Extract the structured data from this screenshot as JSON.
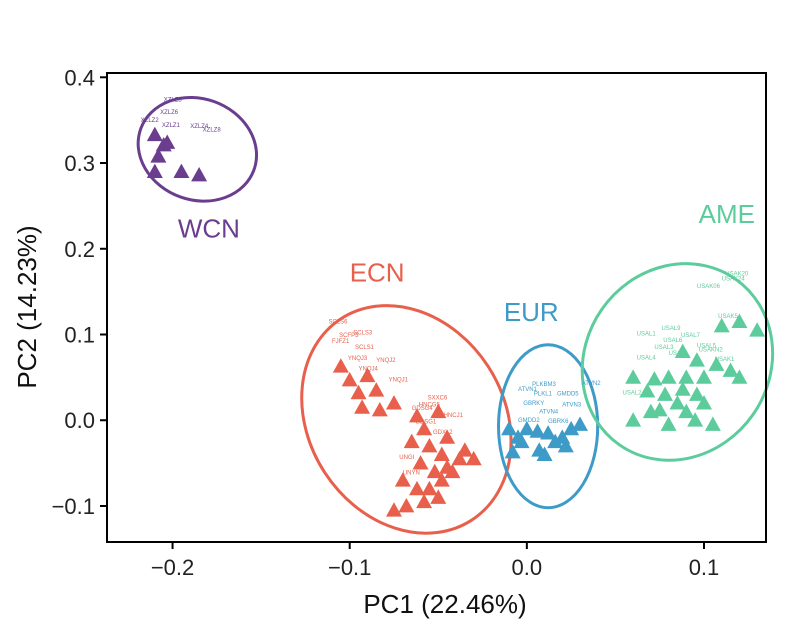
{
  "chart_data": {
    "type": "scatter",
    "xlabel": "PC1 (22.46%)",
    "ylabel": "PC2 (14.23%)",
    "xlim": [
      -0.237,
      0.135
    ],
    "ylim": [
      -0.142,
      0.405
    ],
    "x_ticks": [
      -0.2,
      -0.1,
      0.0,
      0.1
    ],
    "x_tick_labels": [
      "−0.2",
      "−0.1",
      "0.0",
      "0.1"
    ],
    "y_ticks": [
      -0.1,
      0.0,
      0.1,
      0.2,
      0.3,
      0.4
    ],
    "y_tick_labels": [
      "−0.1",
      "0.0",
      "0.1",
      "0.2",
      "0.3",
      "0.4"
    ],
    "grid": false,
    "legend": "none",
    "marker": "triangle",
    "groups": [
      {
        "name": "WCN",
        "color": "#6a3d8f",
        "label_at": [
          -0.197,
          0.213
        ],
        "ellipse": {
          "cx": -0.186,
          "cy": 0.316,
          "rx": 0.034,
          "ry": 0.059,
          "angle_deg": 20
        },
        "points": [
          [
            -0.21,
            0.333
          ],
          [
            -0.205,
            0.321
          ],
          [
            -0.208,
            0.308
          ],
          [
            -0.21,
            0.29
          ],
          [
            -0.195,
            0.29
          ],
          [
            -0.185,
            0.286
          ],
          [
            -0.203,
            0.324
          ]
        ],
        "point_labels": [
          {
            "text": "XZLZ3",
            "x": -0.205,
            "y": 0.372
          },
          {
            "text": "XZLZ6",
            "x": -0.207,
            "y": 0.357
          },
          {
            "text": "XZLZ2",
            "x": -0.218,
            "y": 0.348
          },
          {
            "text": "XZLZ1",
            "x": -0.206,
            "y": 0.342
          },
          {
            "text": "XZLZ4",
            "x": -0.19,
            "y": 0.341
          },
          {
            "text": "XZLZ8",
            "x": -0.183,
            "y": 0.337
          }
        ]
      },
      {
        "name": "ECN",
        "color": "#e8604c",
        "label_at": [
          -0.1,
          0.162
        ],
        "ellipse": {
          "cx": -0.068,
          "cy": 0.001,
          "rx": 0.055,
          "ry": 0.14,
          "angle_deg": -33
        },
        "points": [
          [
            -0.105,
            0.063
          ],
          [
            -0.1,
            0.047
          ],
          [
            -0.09,
            0.052
          ],
          [
            -0.095,
            0.032
          ],
          [
            -0.085,
            0.035
          ],
          [
            -0.093,
            0.015
          ],
          [
            -0.075,
            0.02
          ],
          [
            -0.083,
            0.012
          ],
          [
            -0.05,
            0.01
          ],
          [
            -0.062,
            0.005
          ],
          [
            -0.058,
            -0.01
          ],
          [
            -0.045,
            -0.02
          ],
          [
            -0.055,
            -0.03
          ],
          [
            -0.065,
            -0.025
          ],
          [
            -0.048,
            -0.04
          ],
          [
            -0.038,
            -0.045
          ],
          [
            -0.06,
            -0.05
          ],
          [
            -0.052,
            -0.06
          ],
          [
            -0.045,
            -0.055
          ],
          [
            -0.035,
            -0.035
          ],
          [
            -0.07,
            -0.07
          ],
          [
            -0.062,
            -0.08
          ],
          [
            -0.055,
            -0.08
          ],
          [
            -0.048,
            -0.07
          ],
          [
            -0.058,
            -0.095
          ],
          [
            -0.068,
            -0.1
          ],
          [
            -0.075,
            -0.105
          ],
          [
            -0.05,
            -0.09
          ],
          [
            -0.042,
            -0.06
          ],
          [
            -0.03,
            -0.045
          ]
        ],
        "point_labels": [
          {
            "text": "SCLS6",
            "x": -0.112,
            "y": 0.113
          },
          {
            "text": "SCLS3",
            "x": -0.098,
            "y": 0.1
          },
          {
            "text": "SCFP3",
            "x": -0.106,
            "y": 0.097
          },
          {
            "text": "FJFZ1",
            "x": -0.11,
            "y": 0.09
          },
          {
            "text": "SCLS1",
            "x": -0.097,
            "y": 0.083
          },
          {
            "text": "YNQJ3",
            "x": -0.101,
            "y": 0.07
          },
          {
            "text": "YNQJ2",
            "x": -0.085,
            "y": 0.068
          },
          {
            "text": "YNQJ4",
            "x": -0.095,
            "y": 0.058
          },
          {
            "text": "YNQJ1",
            "x": -0.078,
            "y": 0.045
          },
          {
            "text": "SXXC6",
            "x": -0.056,
            "y": 0.024
          },
          {
            "text": "HNCG5",
            "x": -0.061,
            "y": 0.016
          },
          {
            "text": "GDSG4",
            "x": -0.065,
            "y": 0.012
          },
          {
            "text": "HNCJ1",
            "x": -0.047,
            "y": 0.004
          },
          {
            "text": "GDSG1",
            "x": -0.063,
            "y": -0.004
          },
          {
            "text": "GDXL2",
            "x": -0.053,
            "y": -0.016
          },
          {
            "text": "UNGI",
            "x": -0.072,
            "y": -0.045
          },
          {
            "text": "UNYN",
            "x": -0.07,
            "y": -0.063
          }
        ]
      },
      {
        "name": "EUR",
        "color": "#3e9bc8",
        "label_at": [
          -0.013,
          0.116
        ],
        "ellipse": {
          "cx": 0.012,
          "cy": -0.007,
          "rx": 0.028,
          "ry": 0.095,
          "angle_deg": 0
        },
        "points": [
          [
            -0.01,
            -0.01
          ],
          [
            -0.005,
            -0.02
          ],
          [
            0.0,
            -0.01
          ],
          [
            0.006,
            -0.013
          ],
          [
            0.012,
            -0.015
          ],
          [
            0.02,
            -0.02
          ],
          [
            0.025,
            -0.01
          ],
          [
            0.03,
            -0.005
          ],
          [
            0.016,
            -0.025
          ],
          [
            0.007,
            -0.035
          ],
          [
            -0.003,
            -0.025
          ],
          [
            -0.008,
            -0.037
          ],
          [
            0.01,
            -0.04
          ],
          [
            0.022,
            -0.03
          ]
        ],
        "point_labels": [
          {
            "text": "PLKBM3",
            "x": 0.003,
            "y": 0.04
          },
          {
            "text": "ATVN2",
            "x": 0.031,
            "y": 0.041
          },
          {
            "text": "ATVN1",
            "x": -0.005,
            "y": 0.034
          },
          {
            "text": "PLKL1",
            "x": 0.004,
            "y": 0.029
          },
          {
            "text": "GMDD5",
            "x": 0.017,
            "y": 0.029
          },
          {
            "text": "GBRKY",
            "x": -0.002,
            "y": 0.018
          },
          {
            "text": "ATVN3",
            "x": 0.02,
            "y": 0.016
          },
          {
            "text": "ATVN4",
            "x": 0.007,
            "y": 0.008
          },
          {
            "text": "GMDD2",
            "x": -0.005,
            "y": -0.002
          },
          {
            "text": "GBRK6",
            "x": 0.012,
            "y": -0.003
          }
        ]
      },
      {
        "name": "AME",
        "color": "#5dcc9c",
        "label_at": [
          0.097,
          0.23
        ],
        "ellipse": {
          "cx": 0.085,
          "cy": 0.068,
          "rx": 0.052,
          "ry": 0.118,
          "angle_deg": 35
        },
        "points": [
          [
            0.06,
            0.05
          ],
          [
            0.072,
            0.048
          ],
          [
            0.08,
            0.05
          ],
          [
            0.09,
            0.05
          ],
          [
            0.1,
            0.05
          ],
          [
            0.107,
            0.065
          ],
          [
            0.115,
            0.058
          ],
          [
            0.12,
            0.05
          ],
          [
            0.088,
            0.036
          ],
          [
            0.096,
            0.03
          ],
          [
            0.078,
            0.03
          ],
          [
            0.068,
            0.034
          ],
          [
            0.085,
            0.02
          ],
          [
            0.075,
            0.012
          ],
          [
            0.09,
            0.01
          ],
          [
            0.1,
            0.02
          ],
          [
            0.07,
            0.01
          ],
          [
            0.06,
            0.0
          ],
          [
            0.08,
            -0.005
          ],
          [
            0.095,
            0.0
          ],
          [
            0.105,
            -0.005
          ],
          [
            0.12,
            0.115
          ],
          [
            0.11,
            0.11
          ],
          [
            0.13,
            0.105
          ],
          [
            0.088,
            0.08
          ],
          [
            0.096,
            0.07
          ]
        ],
        "point_labels": [
          {
            "text": "USAK20",
            "x": 0.112,
            "y": 0.169
          },
          {
            "text": "USAK24",
            "x": 0.11,
            "y": 0.163
          },
          {
            "text": "USAK06",
            "x": 0.096,
            "y": 0.154
          },
          {
            "text": "USAK5",
            "x": 0.108,
            "y": 0.119
          },
          {
            "text": "USAL9",
            "x": 0.076,
            "y": 0.105
          },
          {
            "text": "USAL1",
            "x": 0.062,
            "y": 0.099
          },
          {
            "text": "USAL6",
            "x": 0.077,
            "y": 0.091
          },
          {
            "text": "USAL7",
            "x": 0.087,
            "y": 0.097
          },
          {
            "text": "USAL3",
            "x": 0.072,
            "y": 0.083
          },
          {
            "text": "USAL5",
            "x": 0.096,
            "y": 0.085
          },
          {
            "text": "USAL8",
            "x": 0.08,
            "y": 0.076
          },
          {
            "text": "USAKN2",
            "x": 0.097,
            "y": 0.08
          },
          {
            "text": "USAL4",
            "x": 0.062,
            "y": 0.071
          },
          {
            "text": "USAK1",
            "x": 0.106,
            "y": 0.069
          },
          {
            "text": "USAL2",
            "x": 0.054,
            "y": 0.03
          }
        ]
      }
    ]
  }
}
